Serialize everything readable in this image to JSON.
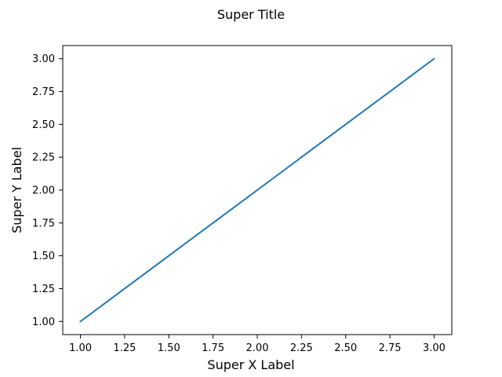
{
  "chart_data": {
    "type": "line",
    "title": "Super Title",
    "xlabel": "Super X Label",
    "ylabel": "Super Y Label",
    "xlim": [
      0.9,
      3.1
    ],
    "ylim": [
      0.9,
      3.1
    ],
    "xticks": [
      "1.00",
      "1.25",
      "1.50",
      "1.75",
      "2.00",
      "2.25",
      "2.50",
      "2.75",
      "3.00"
    ],
    "yticks": [
      "1.00",
      "1.25",
      "1.50",
      "1.75",
      "2.00",
      "2.25",
      "2.50",
      "2.75",
      "3.00"
    ],
    "grid": false,
    "series": [
      {
        "x": [
          1,
          2,
          3
        ],
        "y": [
          1,
          2,
          3
        ],
        "color": "#1f77b4"
      }
    ]
  }
}
